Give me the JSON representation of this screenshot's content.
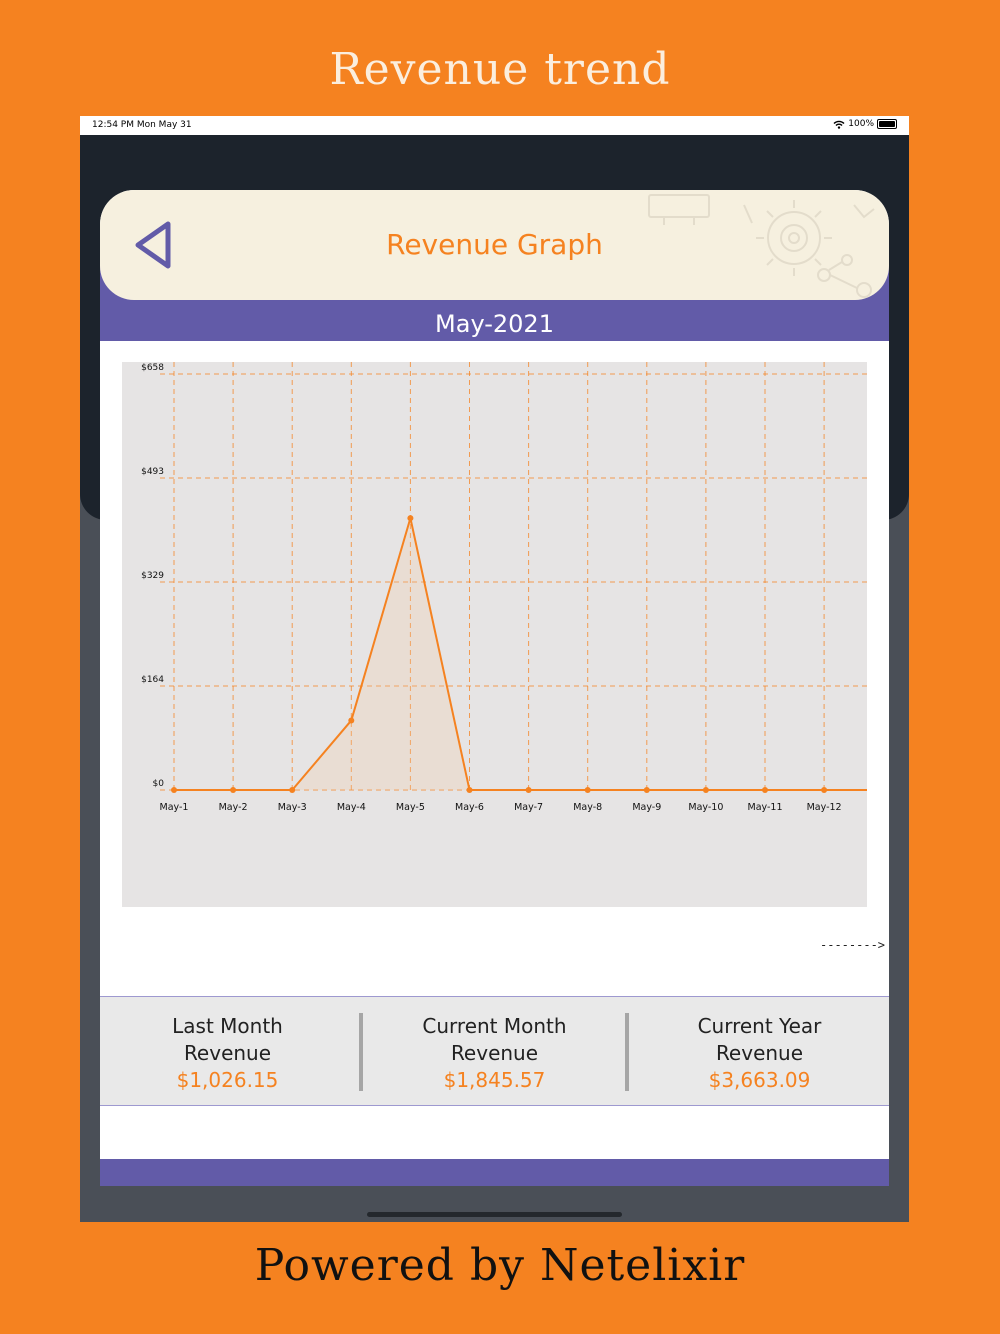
{
  "promo": {
    "title": "Revenue trend",
    "footer": "Powered by Netelixir"
  },
  "status_bar": {
    "time": "12:54 PM   Mon May 31",
    "battery": "100%"
  },
  "header": {
    "title": "Revenue Graph",
    "back_icon": "back-triangle-icon"
  },
  "month": "May-2021",
  "scroll_hint": "-------->",
  "colors": {
    "background": "#f58220",
    "accent": "#f58220",
    "purple": "#625ba8",
    "chart_bg": "#e6e4e4"
  },
  "chart_data": {
    "type": "area",
    "title": "",
    "xlabel": "",
    "ylabel": "",
    "categories": [
      "May-1",
      "May-2",
      "May-3",
      "May-4",
      "May-5",
      "May-6",
      "May-7",
      "May-8",
      "May-9",
      "May-10",
      "May-11",
      "May-12"
    ],
    "y_ticks": [
      "$0",
      "$164",
      "$329",
      "$493",
      "$658"
    ],
    "ylim": [
      0,
      658
    ],
    "series": [
      {
        "values": [
          0,
          0,
          0,
          110,
          430,
          0,
          0,
          0,
          0,
          0,
          0,
          0
        ]
      }
    ],
    "grid": true
  },
  "stats": [
    {
      "label_line1": "Last Month",
      "label_line2": "Revenue",
      "value": "$1,026.15"
    },
    {
      "label_line1": "Current Month",
      "label_line2": "Revenue",
      "value": "$1,845.57"
    },
    {
      "label_line1": "Current Year",
      "label_line2": "Revenue",
      "value": "$3,663.09"
    }
  ]
}
